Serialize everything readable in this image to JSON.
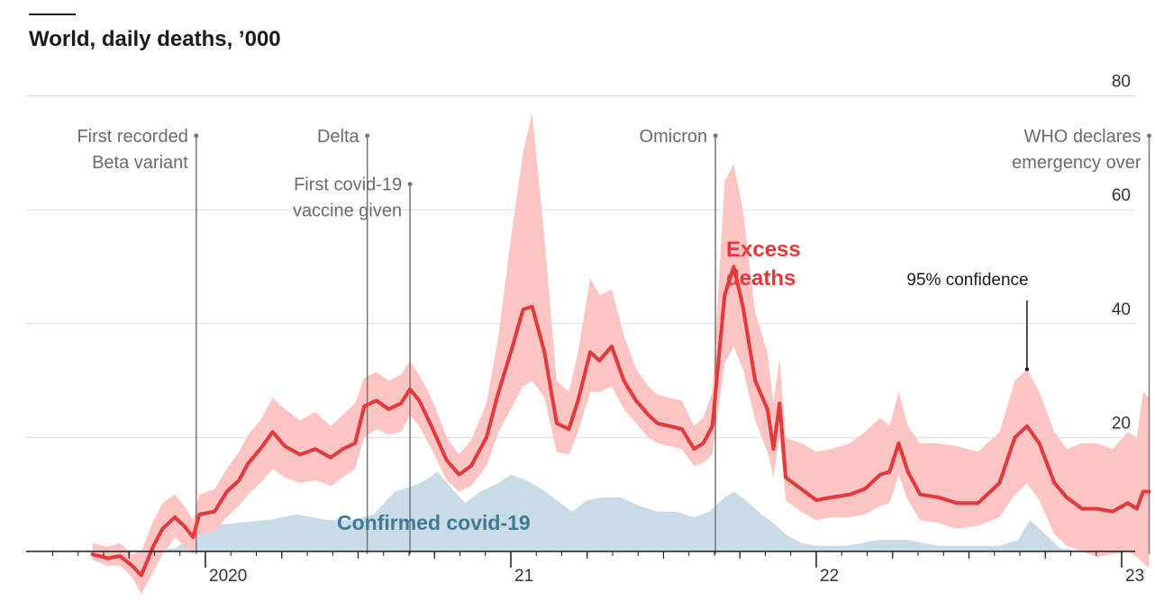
{
  "title": "World, daily deaths, ’000",
  "colors": {
    "excess_line": "#e5383b",
    "excess_band": "#fdc4c4",
    "confirmed_area": "#c9dbe6",
    "confirmed_label": "#3e7a96",
    "gridline": "#dcdcdc",
    "annotation": "#777777"
  },
  "chart_data": {
    "type": "line",
    "title": "World, daily deaths, ’000",
    "x_unit": "decimal year",
    "xlim": [
      2019.55,
      2023.25
    ],
    "ylim": [
      -5,
      80
    ],
    "y_ticks": [
      0,
      20,
      40,
      60,
      80
    ],
    "x_tick_labels": [
      {
        "x": 2020.0,
        "label": "2020"
      },
      {
        "x": 2021.0,
        "label": "21"
      },
      {
        "x": 2022.0,
        "label": "22"
      },
      {
        "x": 2023.0,
        "label": "23"
      }
    ],
    "quarter_ticks": [
      2019.75,
      2020.25,
      2020.5,
      2020.75,
      2021.25,
      2021.5,
      2021.75,
      2022.25,
      2022.5,
      2022.75,
      2023.25
    ],
    "grid": true,
    "series": [
      {
        "name": "Excess deaths",
        "kind": "line_with_band",
        "points": [
          [
            2019.63,
            -0.5,
            -1.5,
            1.5
          ],
          [
            2019.68,
            -1.2,
            -2.5,
            0.8
          ],
          [
            2019.72,
            -0.8,
            -2.5,
            1.5
          ],
          [
            2019.76,
            -2.5,
            -4.5,
            -0.5
          ],
          [
            2019.79,
            -4.2,
            -7.5,
            0.0
          ],
          [
            2019.83,
            1.0,
            -3.5,
            5.5
          ],
          [
            2019.86,
            4.0,
            -0.5,
            8.5
          ],
          [
            2019.9,
            6.0,
            2.5,
            10.0
          ],
          [
            2019.93,
            4.5,
            1.0,
            8.0
          ],
          [
            2019.96,
            2.5,
            -0.5,
            5.5
          ],
          [
            2019.98,
            6.5,
            3.0,
            10.0
          ],
          [
            2020.03,
            7.0,
            3.5,
            11.0
          ],
          [
            2020.07,
            10.5,
            6.0,
            14.5
          ],
          [
            2020.11,
            12.5,
            8.0,
            17.5
          ],
          [
            2020.14,
            15.5,
            10.0,
            20.5
          ],
          [
            2020.18,
            18.0,
            12.0,
            23.0
          ],
          [
            2020.22,
            21.0,
            14.5,
            27.0
          ],
          [
            2020.26,
            18.5,
            13.0,
            25.0
          ],
          [
            2020.31,
            17.0,
            12.0,
            23.0
          ],
          [
            2020.36,
            18.0,
            12.5,
            24.5
          ],
          [
            2020.41,
            16.5,
            11.5,
            22.0
          ],
          [
            2020.45,
            18.0,
            13.0,
            24.0
          ],
          [
            2020.49,
            19.0,
            14.5,
            26.0
          ],
          [
            2020.52,
            25.5,
            20.0,
            30.5
          ],
          [
            2020.56,
            26.5,
            21.5,
            31.5
          ],
          [
            2020.6,
            25.0,
            20.5,
            30.0
          ],
          [
            2020.64,
            26.0,
            21.0,
            31.0
          ],
          [
            2020.67,
            28.5,
            24.0,
            33.5
          ],
          [
            2020.7,
            26.5,
            22.0,
            31.0
          ],
          [
            2020.74,
            22.0,
            18.0,
            27.0
          ],
          [
            2020.79,
            16.0,
            12.5,
            20.0
          ],
          [
            2020.83,
            13.5,
            10.5,
            17.0
          ],
          [
            2020.87,
            15.0,
            11.5,
            19.5
          ],
          [
            2020.92,
            20.0,
            15.0,
            26.0
          ],
          [
            2020.96,
            28.0,
            21.0,
            38.0
          ],
          [
            2021.0,
            35.0,
            25.0,
            55.0
          ],
          [
            2021.04,
            42.5,
            29.0,
            70.0
          ],
          [
            2021.07,
            43.0,
            30.0,
            77.0
          ],
          [
            2021.11,
            35.0,
            27.0,
            55.0
          ],
          [
            2021.15,
            22.5,
            17.5,
            30.0
          ],
          [
            2021.19,
            21.5,
            17.0,
            28.0
          ],
          [
            2021.22,
            26.5,
            21.0,
            35.0
          ],
          [
            2021.26,
            35.0,
            28.0,
            48.0
          ],
          [
            2021.29,
            33.5,
            28.0,
            45.0
          ],
          [
            2021.33,
            36.0,
            29.0,
            46.0
          ],
          [
            2021.37,
            30.0,
            25.0,
            38.0
          ],
          [
            2021.41,
            26.5,
            22.5,
            32.0
          ],
          [
            2021.45,
            24.0,
            20.0,
            29.0
          ],
          [
            2021.48,
            22.5,
            19.0,
            27.5
          ],
          [
            2021.52,
            22.0,
            18.5,
            27.0
          ],
          [
            2021.56,
            21.5,
            18.0,
            26.5
          ],
          [
            2021.6,
            18.0,
            15.0,
            22.0
          ],
          [
            2021.63,
            19.0,
            15.5,
            23.5
          ],
          [
            2021.66,
            22.0,
            17.0,
            28.0
          ],
          [
            2021.7,
            45.0,
            33.0,
            65.0
          ],
          [
            2021.73,
            50.0,
            36.0,
            68.0
          ],
          [
            2021.76,
            43.0,
            32.0,
            60.0
          ],
          [
            2021.8,
            30.0,
            23.0,
            42.0
          ],
          [
            2021.84,
            25.0,
            17.5,
            35.0
          ],
          [
            2021.86,
            18.0,
            13.0,
            26.0
          ],
          [
            2021.88,
            26.0,
            20.0,
            34.0
          ],
          [
            2021.9,
            13.0,
            9.0,
            20.0
          ],
          [
            2021.95,
            11.0,
            7.0,
            19.0
          ],
          [
            2022.0,
            9.0,
            5.5,
            17.5
          ],
          [
            2022.05,
            9.5,
            6.0,
            18.0
          ],
          [
            2022.11,
            10.0,
            6.0,
            19.0
          ],
          [
            2022.16,
            11.0,
            6.5,
            21.0
          ],
          [
            2022.21,
            13.5,
            8.0,
            23.5
          ],
          [
            2022.24,
            14.0,
            8.5,
            22.0
          ],
          [
            2022.27,
            19.0,
            13.5,
            28.0
          ],
          [
            2022.3,
            14.0,
            9.0,
            22.0
          ],
          [
            2022.34,
            10.0,
            5.5,
            19.0
          ],
          [
            2022.4,
            9.5,
            5.0,
            19.0
          ],
          [
            2022.46,
            8.5,
            4.0,
            18.5
          ],
          [
            2022.53,
            8.5,
            4.5,
            17.5
          ],
          [
            2022.6,
            12.0,
            6.0,
            21.0
          ],
          [
            2022.65,
            20.0,
            10.0,
            30.0
          ],
          [
            2022.69,
            22.0,
            12.0,
            32.0
          ],
          [
            2022.73,
            19.0,
            9.0,
            28.0
          ],
          [
            2022.78,
            12.0,
            3.0,
            21.0
          ],
          [
            2022.82,
            9.5,
            1.0,
            18.0
          ],
          [
            2022.87,
            7.5,
            0.0,
            19.0
          ],
          [
            2022.92,
            7.5,
            -1.0,
            19.0
          ],
          [
            2022.97,
            7.0,
            -0.5,
            18.0
          ],
          [
            2023.02,
            8.5,
            0.0,
            21.0
          ],
          [
            2023.05,
            7.5,
            -1.0,
            20.0
          ],
          [
            2023.07,
            10.5,
            -2.0,
            28.0
          ],
          [
            2023.09,
            10.5,
            -3.0,
            27.0
          ]
        ]
      },
      {
        "name": "Confirmed covid-19",
        "kind": "area",
        "points": [
          [
            2019.63,
            0.0
          ],
          [
            2019.9,
            0.5
          ],
          [
            2019.95,
            2.5
          ],
          [
            2020.0,
            4.5
          ],
          [
            2020.1,
            5.0
          ],
          [
            2020.2,
            5.5
          ],
          [
            2020.3,
            6.5
          ],
          [
            2020.4,
            5.5
          ],
          [
            2020.48,
            5.5
          ],
          [
            2020.55,
            6.5
          ],
          [
            2020.62,
            10.5
          ],
          [
            2020.68,
            11.5
          ],
          [
            2020.72,
            12.5
          ],
          [
            2020.76,
            14.0
          ],
          [
            2020.8,
            11.5
          ],
          [
            2020.85,
            8.5
          ],
          [
            2020.9,
            10.5
          ],
          [
            2020.96,
            12.0
          ],
          [
            2021.0,
            13.5
          ],
          [
            2021.05,
            12.5
          ],
          [
            2021.1,
            11.0
          ],
          [
            2021.15,
            9.0
          ],
          [
            2021.2,
            7.0
          ],
          [
            2021.25,
            9.0
          ],
          [
            2021.3,
            9.5
          ],
          [
            2021.36,
            9.5
          ],
          [
            2021.42,
            8.0
          ],
          [
            2021.48,
            7.0
          ],
          [
            2021.54,
            7.0
          ],
          [
            2021.6,
            6.0
          ],
          [
            2021.65,
            7.0
          ],
          [
            2021.7,
            9.5
          ],
          [
            2021.73,
            10.5
          ],
          [
            2021.77,
            9.0
          ],
          [
            2021.82,
            6.5
          ],
          [
            2021.86,
            5.0
          ],
          [
            2021.9,
            3.0
          ],
          [
            2021.95,
            1.5
          ],
          [
            2022.0,
            1.0
          ],
          [
            2022.1,
            1.0
          ],
          [
            2022.2,
            2.0
          ],
          [
            2022.3,
            2.0
          ],
          [
            2022.4,
            1.0
          ],
          [
            2022.5,
            1.0
          ],
          [
            2022.6,
            1.0
          ],
          [
            2022.66,
            2.0
          ],
          [
            2022.7,
            5.5
          ],
          [
            2022.74,
            3.5
          ],
          [
            2022.8,
            0.5
          ],
          [
            2022.9,
            0.0
          ],
          [
            2023.09,
            0.0
          ]
        ]
      }
    ],
    "series_labels": {
      "excess_line1": "Excess",
      "excess_line2": "deaths",
      "confirmed": "Confirmed covid-19",
      "confidence": "95% confidence"
    },
    "confidence_pointer": {
      "x": 2022.69,
      "y": 32.0
    },
    "annotations": [
      {
        "x": 2019.97,
        "top_y": 73.0,
        "lines": [
          "First recorded",
          "Beta variant"
        ]
      },
      {
        "x": 2020.53,
        "top_y": 73.0,
        "lines": [
          "Delta"
        ]
      },
      {
        "x": 2020.67,
        "top_y": 64.5,
        "lines": [
          "First covid-19",
          "vaccine given"
        ]
      },
      {
        "x": 2021.67,
        "top_y": 73.0,
        "lines": [
          "Omicron"
        ]
      },
      {
        "x": 2023.09,
        "top_y": 73.0,
        "lines": [
          "WHO declares",
          "emergency over"
        ]
      }
    ]
  }
}
